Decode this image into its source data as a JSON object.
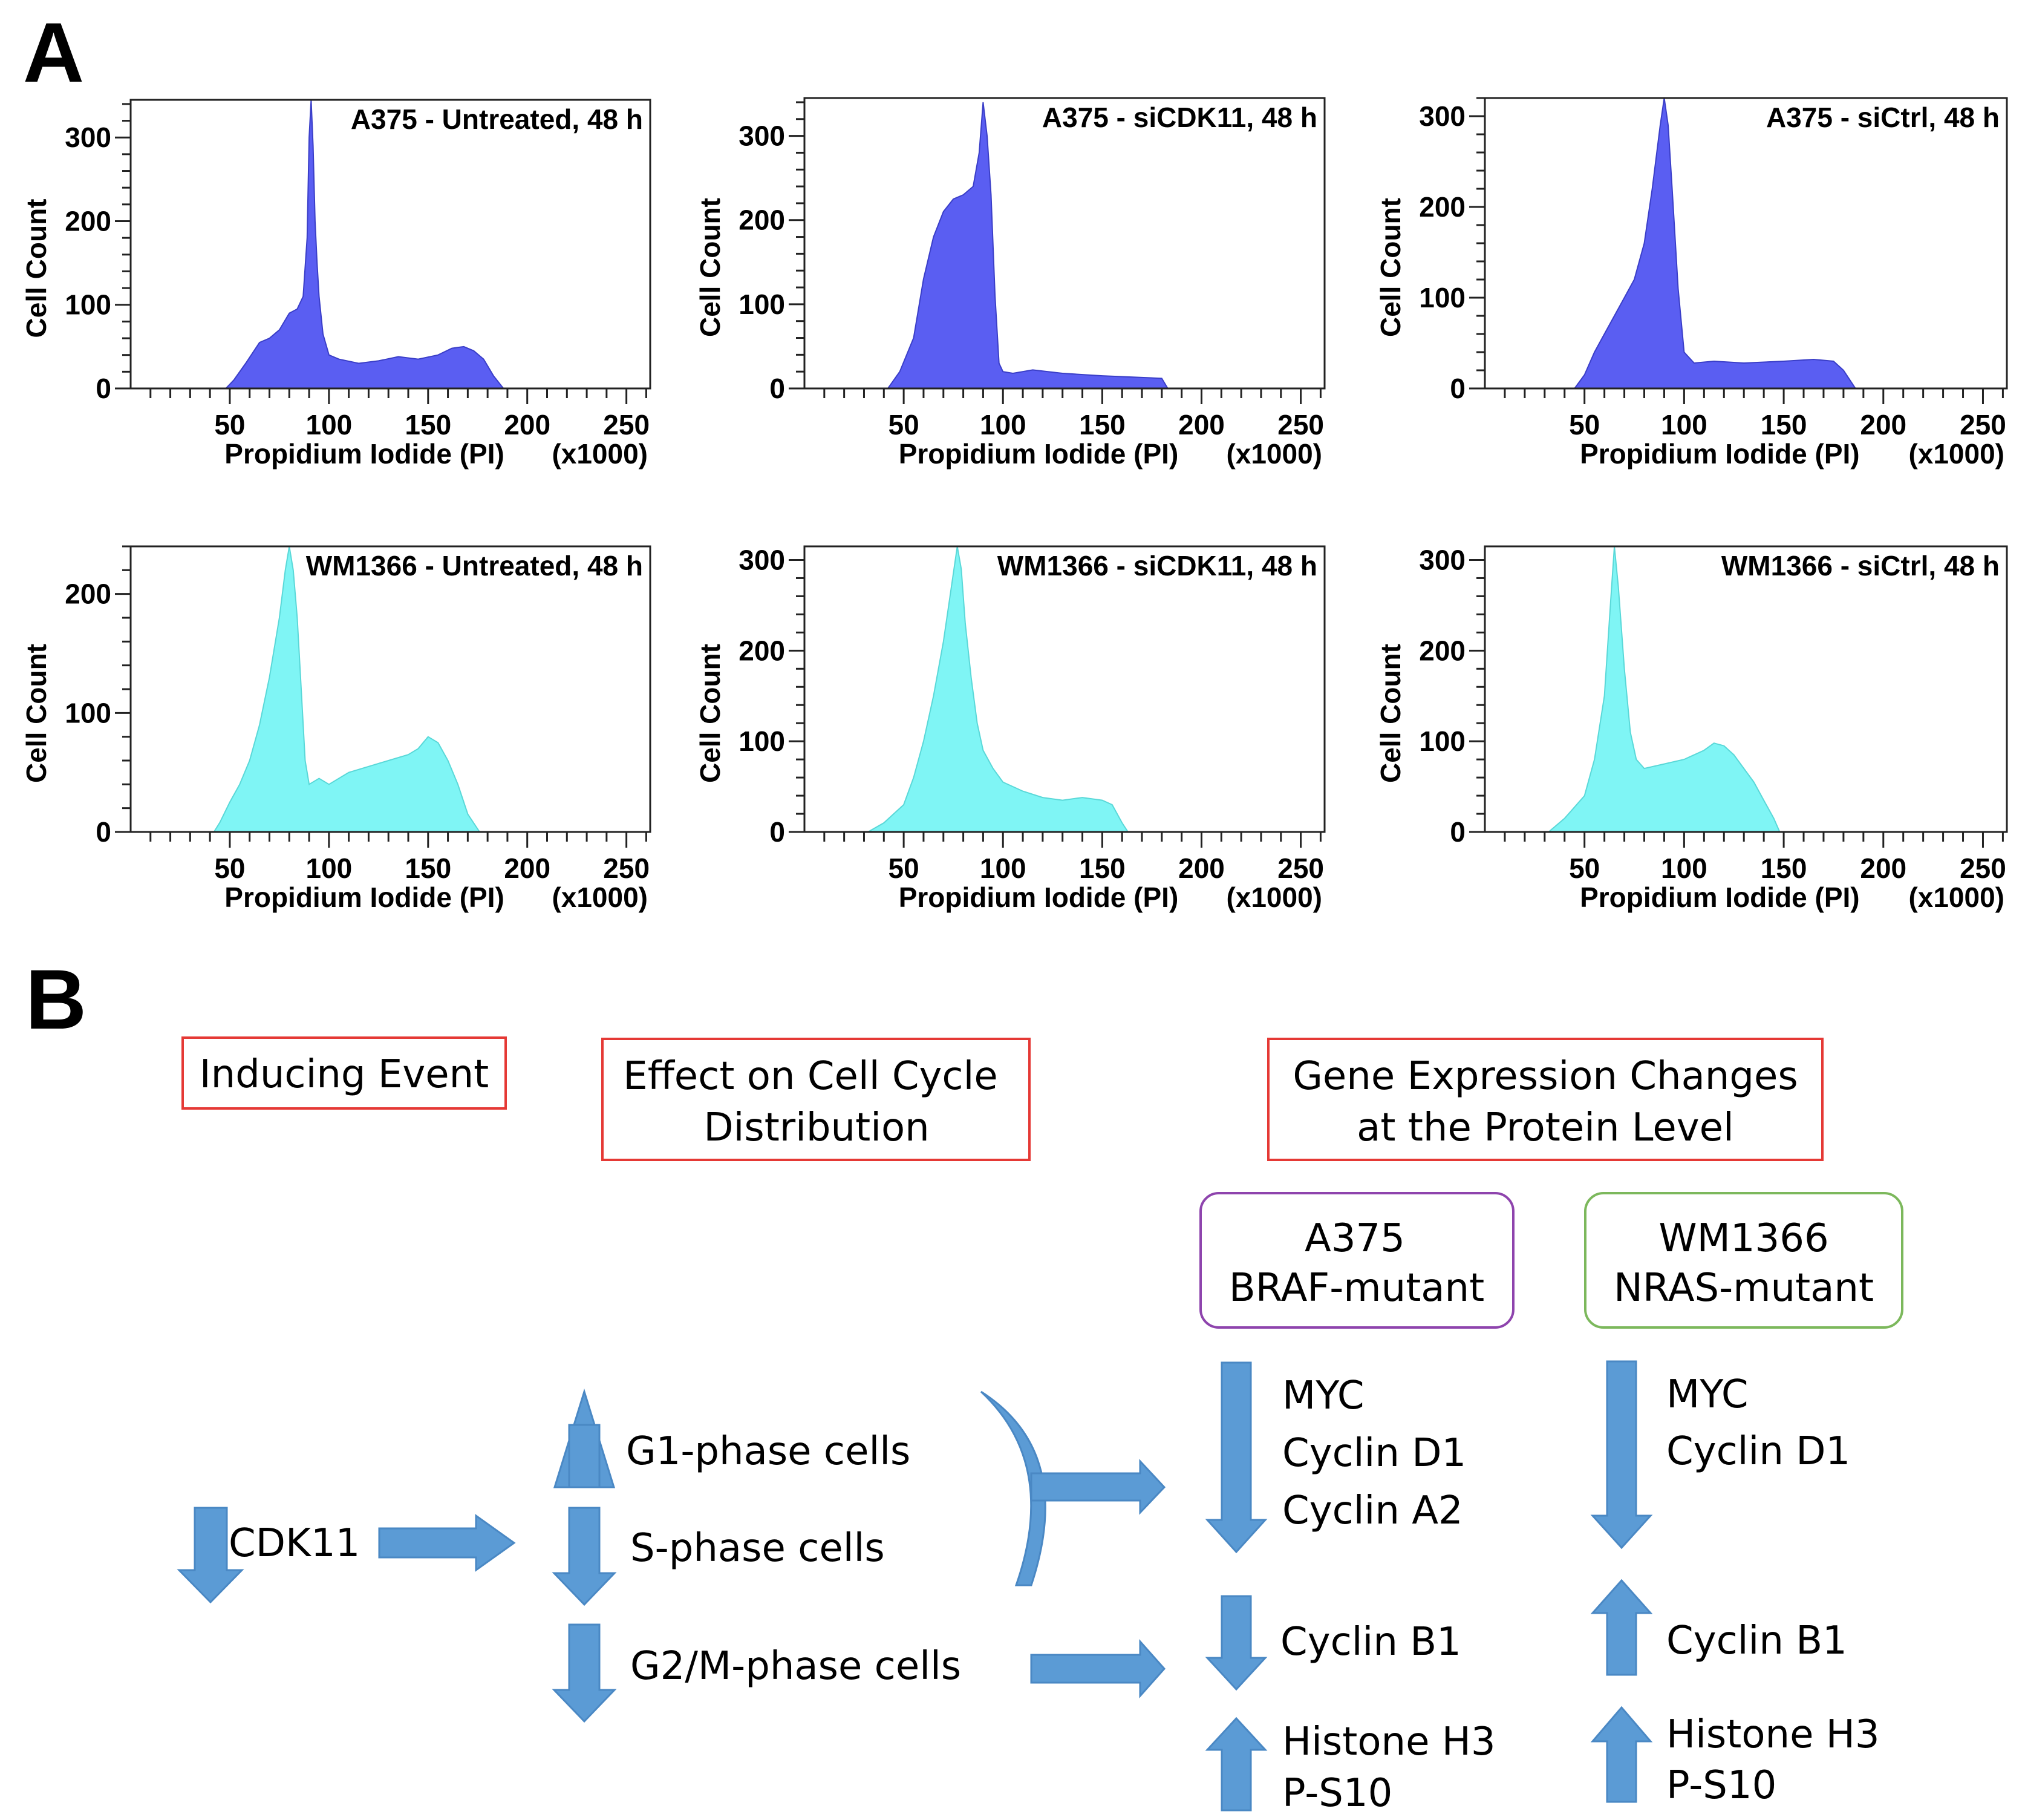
{
  "panel_labels": {
    "a": "A",
    "b": "B"
  },
  "common": {
    "xlabel": "Propidium Iodide (PI)",
    "xunit": "(x1000)",
    "ylabel": "Cell Count",
    "xticks": [
      "50",
      "100",
      "150",
      "200",
      "250"
    ]
  },
  "colors": {
    "a375_fill": "#5a5ef2",
    "wm1366_fill": "#7ff5f5",
    "arrow": "#5b9bd5",
    "red_box": "#e53935",
    "purple_box": "#8e44ad",
    "green_box": "#7cb85c"
  },
  "chart_data": [
    {
      "type": "area",
      "title": "A375 - Untreated, 48 h",
      "xlabel": "Propidium Iodide (PI)",
      "ylabel": "Cell Count",
      "xlim": [
        0,
        262
      ],
      "ylim": [
        0,
        345
      ],
      "yticks": [
        0,
        100,
        200,
        300
      ],
      "color": "#5a5ef2",
      "x": [
        48,
        52,
        58,
        65,
        70,
        75,
        80,
        84,
        87,
        89,
        90,
        91,
        92,
        93,
        94,
        95,
        97,
        100,
        105,
        115,
        125,
        135,
        145,
        155,
        162,
        168,
        173,
        178,
        183,
        188
      ],
      "values": [
        0,
        10,
        30,
        55,
        60,
        70,
        90,
        95,
        110,
        180,
        300,
        345,
        290,
        200,
        150,
        110,
        65,
        40,
        35,
        30,
        33,
        38,
        35,
        40,
        48,
        50,
        45,
        35,
        15,
        0
      ]
    },
    {
      "type": "area",
      "title": "A375 - siCDK11, 48 h",
      "xlabel": "Propidium Iodide (PI)",
      "ylabel": "Cell Count",
      "xlim": [
        0,
        262
      ],
      "ylim": [
        0,
        345
      ],
      "yticks": [
        0,
        100,
        200,
        300
      ],
      "color": "#5a5ef2",
      "x": [
        42,
        48,
        55,
        60,
        65,
        70,
        75,
        80,
        85,
        88,
        90,
        92,
        94,
        96,
        98,
        100,
        105,
        115,
        130,
        150,
        170,
        180,
        183
      ],
      "values": [
        0,
        20,
        60,
        130,
        180,
        210,
        225,
        230,
        240,
        280,
        340,
        300,
        230,
        110,
        30,
        20,
        18,
        22,
        18,
        15,
        13,
        12,
        0
      ]
    },
    {
      "type": "area",
      "title": "A375 - siCtrl, 48 h",
      "xlabel": "Propidium Iodide (PI)",
      "ylabel": "Cell Count",
      "xlim": [
        0,
        262
      ],
      "ylim": [
        0,
        320
      ],
      "yticks": [
        0,
        100,
        200,
        300
      ],
      "color": "#5a5ef2",
      "x": [
        45,
        50,
        55,
        60,
        65,
        70,
        75,
        80,
        84,
        88,
        90,
        92,
        94,
        97,
        100,
        105,
        115,
        130,
        150,
        165,
        175,
        180,
        186
      ],
      "values": [
        0,
        15,
        40,
        60,
        80,
        100,
        120,
        160,
        220,
        290,
        320,
        290,
        220,
        110,
        40,
        28,
        30,
        28,
        30,
        32,
        30,
        20,
        0
      ]
    },
    {
      "type": "area",
      "title": "WM1366 - Untreated, 48 h",
      "xlabel": "Propidium Iodide (PI)",
      "ylabel": "Cell Count",
      "xlim": [
        0,
        262
      ],
      "ylim": [
        0,
        240
      ],
      "yticks": [
        0,
        100,
        200
      ],
      "color": "#7ff5f5",
      "x": [
        42,
        45,
        50,
        55,
        60,
        65,
        70,
        75,
        78,
        80,
        82,
        84,
        86,
        88,
        90,
        95,
        100,
        110,
        120,
        130,
        140,
        145,
        150,
        155,
        160,
        165,
        170,
        176
      ],
      "values": [
        0,
        8,
        25,
        40,
        60,
        90,
        130,
        180,
        220,
        240,
        220,
        180,
        120,
        60,
        40,
        45,
        40,
        50,
        55,
        60,
        65,
        70,
        80,
        75,
        60,
        40,
        15,
        0
      ]
    },
    {
      "type": "area",
      "title": "WM1366 - siCDK11, 48 h",
      "xlabel": "Propidium Iodide (PI)",
      "ylabel": "Cell Count",
      "xlim": [
        0,
        262
      ],
      "ylim": [
        0,
        315
      ],
      "yticks": [
        0,
        100,
        200,
        300
      ],
      "color": "#7ff5f5",
      "x": [
        32,
        40,
        50,
        55,
        60,
        65,
        70,
        74,
        77,
        79,
        81,
        84,
        87,
        90,
        95,
        100,
        110,
        120,
        130,
        140,
        150,
        155,
        160,
        163
      ],
      "values": [
        0,
        10,
        30,
        60,
        100,
        150,
        210,
        270,
        315,
        290,
        230,
        170,
        120,
        90,
        70,
        55,
        45,
        38,
        35,
        38,
        35,
        30,
        10,
        0
      ]
    },
    {
      "type": "area",
      "title": "WM1366 - siCtrl, 48 h",
      "xlabel": "Propidium Iodide (PI)",
      "ylabel": "Cell Count",
      "xlim": [
        0,
        262
      ],
      "ylim": [
        0,
        315
      ],
      "yticks": [
        0,
        100,
        200,
        300
      ],
      "color": "#7ff5f5",
      "x": [
        32,
        40,
        50,
        55,
        60,
        63,
        65,
        67,
        70,
        73,
        76,
        80,
        90,
        100,
        110,
        115,
        120,
        125,
        130,
        135,
        140,
        145,
        148
      ],
      "values": [
        0,
        15,
        40,
        80,
        150,
        250,
        315,
        270,
        180,
        110,
        80,
        70,
        75,
        80,
        90,
        98,
        95,
        85,
        70,
        55,
        35,
        15,
        0
      ]
    }
  ],
  "diagram": {
    "headers": {
      "inducing": "Inducing Event",
      "effect_1": "Effect on Cell Cycle",
      "effect_2": "Distribution",
      "gene_1": "Gene Expression Changes",
      "gene_2": "at the Protein Level"
    },
    "cell_lines": {
      "a375": {
        "name": "A375",
        "type": "BRAF-mutant"
      },
      "wm1366": {
        "name": "WM1366",
        "type": "NRAS-mutant"
      }
    },
    "cdk11": "CDK11",
    "phases": {
      "g1": "G1-phase cells",
      "s": "S-phase cells",
      "g2m": "G2/M-phase cells"
    },
    "a375_proteins": {
      "myc": "MYC",
      "d1": "Cyclin D1",
      "a2": "Cyclin A2",
      "b1": "Cyclin B1",
      "h3": "Histone H3",
      "ps10": "P-S10"
    },
    "wm1366_proteins": {
      "myc": "MYC",
      "d1": "Cyclin D1",
      "b1": "Cyclin B1",
      "h3": "Histone H3",
      "ps10": "P-S10"
    }
  }
}
